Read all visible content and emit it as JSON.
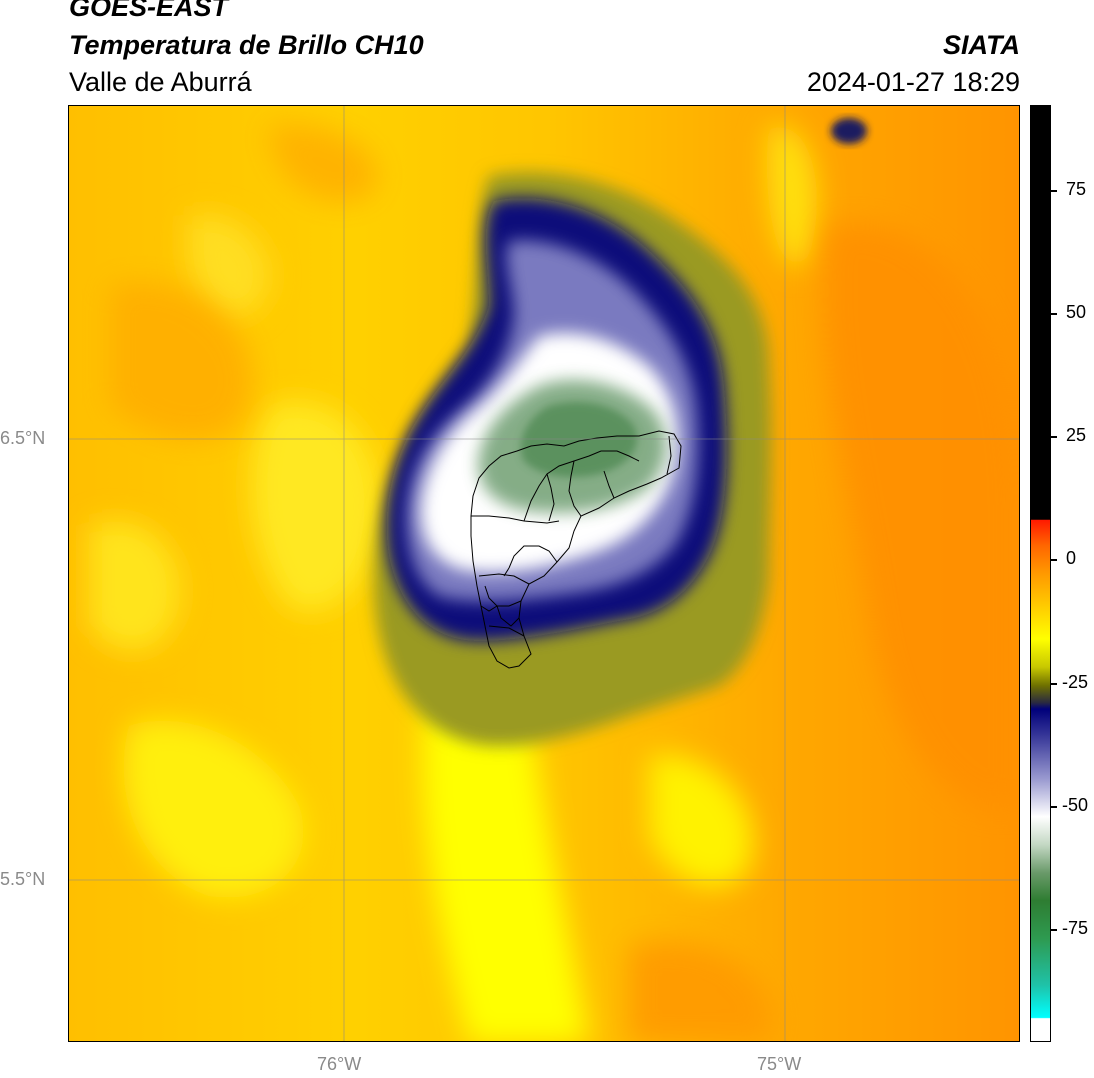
{
  "header": {
    "satellite": "GOES-EAST",
    "product": "Temperatura de Brillo CH10",
    "region": "Valle de Aburrá",
    "organization": "SIATA",
    "datetime": "2024-01-27 18:29"
  },
  "map": {
    "lat_labels": [
      "6.5°N",
      "5.5°N"
    ],
    "lon_labels": [
      "76°W",
      "75°W"
    ],
    "gridlines": true
  },
  "colorbar": {
    "ticks": [
      "75",
      "50",
      "25",
      "0",
      "-25",
      "-50",
      "-75"
    ],
    "colors": {
      "warm_top": "#000000",
      "red": "#ff1a00",
      "orange": "#ff9900",
      "yellow": "#ffff00",
      "navy": "#00007a",
      "white": "#ffffff",
      "green": "#2e7d32",
      "cyan": "#00ffff"
    }
  }
}
